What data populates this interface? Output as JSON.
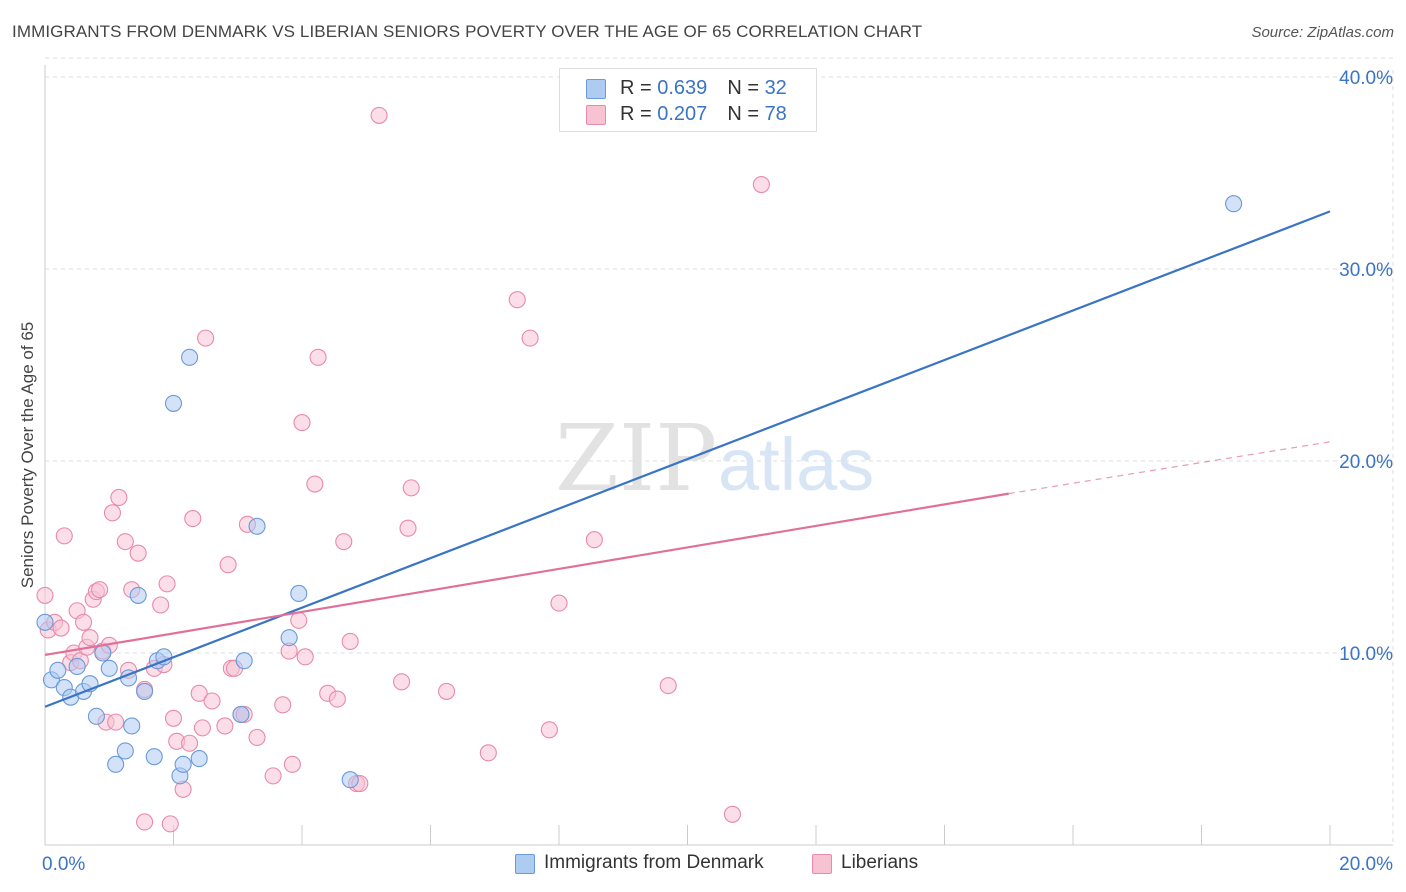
{
  "header": {
    "title": "IMMIGRANTS FROM DENMARK VS LIBERIAN SENIORS POVERTY OVER THE AGE OF 65 CORRELATION CHART",
    "source": "Source: ZipAtlas.com"
  },
  "watermark": {
    "zip": "ZIP",
    "atlas": "atlas"
  },
  "legend": {
    "series1": {
      "r_label": "R = ",
      "r_value": "0.639",
      "n_label": "N = ",
      "n_value": "32"
    },
    "series2": {
      "r_label": "R = ",
      "r_value": "0.207",
      "n_label": "N = ",
      "n_value": "78"
    }
  },
  "bottom_legend": {
    "series1": "Immigrants from Denmark",
    "series2": "Liberians"
  },
  "colors": {
    "blue_fill": "#aecbf2",
    "blue_stroke": "#6a9ad8",
    "blue_line": "#3a74c4",
    "pink_fill": "#f7c3d3",
    "pink_stroke": "#e88aaa",
    "pink_line": "#e0709a",
    "tick_label": "#3a74c4",
    "grid": "#dddddd"
  },
  "chart_data": {
    "type": "scatter",
    "title": "IMMIGRANTS FROM DENMARK VS LIBERIAN SENIORS POVERTY OVER THE AGE OF 65 CORRELATION CHART",
    "xlabel": "",
    "ylabel": "Seniors Poverty Over the Age of 65",
    "xlim": [
      0,
      20
    ],
    "ylim": [
      0,
      41
    ],
    "x_tick_labels": [
      "0.0%",
      "20.0%"
    ],
    "y_ticks": [
      10,
      20,
      30,
      40
    ],
    "y_tick_labels": [
      "10.0%",
      "20.0%",
      "30.0%",
      "40.0%"
    ],
    "grid": true,
    "legend_position": "top-center",
    "series": [
      {
        "name": "Immigrants from Denmark",
        "r": 0.639,
        "n": 32,
        "points": [
          [
            0.0,
            11.6
          ],
          [
            0.1,
            8.6
          ],
          [
            0.2,
            9.1
          ],
          [
            0.3,
            8.2
          ],
          [
            0.4,
            7.7
          ],
          [
            0.5,
            9.3
          ],
          [
            0.6,
            8.0
          ],
          [
            0.7,
            8.4
          ],
          [
            0.8,
            6.7
          ],
          [
            0.9,
            10.0
          ],
          [
            1.0,
            9.2
          ],
          [
            1.25,
            4.9
          ],
          [
            1.3,
            8.7
          ],
          [
            1.35,
            6.2
          ],
          [
            1.45,
            13.0
          ],
          [
            1.55,
            8.0
          ],
          [
            1.7,
            4.6
          ],
          [
            1.75,
            9.6
          ],
          [
            1.85,
            9.8
          ],
          [
            2.0,
            23.0
          ],
          [
            2.1,
            3.6
          ],
          [
            2.15,
            4.2
          ],
          [
            2.25,
            25.4
          ],
          [
            2.4,
            4.5
          ],
          [
            3.05,
            6.8
          ],
          [
            3.1,
            9.6
          ],
          [
            3.3,
            16.6
          ],
          [
            3.8,
            10.8
          ],
          [
            3.95,
            13.1
          ],
          [
            4.75,
            3.4
          ],
          [
            18.5,
            33.4
          ],
          [
            1.1,
            4.2
          ]
        ],
        "trend": {
          "x": [
            0,
            20
          ],
          "y": [
            7.2,
            33.0
          ],
          "style": "solid"
        }
      },
      {
        "name": "Liberians",
        "r": 0.207,
        "n": 78,
        "points": [
          [
            0.0,
            13.0
          ],
          [
            0.05,
            11.2
          ],
          [
            0.15,
            11.6
          ],
          [
            0.25,
            11.3
          ],
          [
            0.3,
            16.1
          ],
          [
            0.4,
            9.5
          ],
          [
            0.45,
            10.0
          ],
          [
            0.5,
            12.2
          ],
          [
            0.55,
            9.6
          ],
          [
            0.6,
            11.6
          ],
          [
            0.65,
            10.3
          ],
          [
            0.7,
            10.8
          ],
          [
            0.75,
            12.8
          ],
          [
            0.8,
            13.2
          ],
          [
            0.85,
            13.3
          ],
          [
            0.9,
            10.1
          ],
          [
            0.95,
            6.4
          ],
          [
            1.0,
            10.4
          ],
          [
            1.05,
            17.3
          ],
          [
            1.1,
            6.4
          ],
          [
            1.15,
            18.1
          ],
          [
            1.25,
            15.8
          ],
          [
            1.3,
            9.1
          ],
          [
            1.35,
            13.3
          ],
          [
            1.45,
            15.2
          ],
          [
            1.55,
            8.1
          ],
          [
            1.55,
            1.2
          ],
          [
            1.7,
            9.2
          ],
          [
            1.8,
            12.5
          ],
          [
            1.85,
            9.4
          ],
          [
            1.9,
            13.6
          ],
          [
            1.95,
            1.1
          ],
          [
            2.0,
            6.6
          ],
          [
            2.05,
            5.4
          ],
          [
            2.15,
            2.9
          ],
          [
            2.25,
            5.3
          ],
          [
            2.3,
            17.0
          ],
          [
            2.4,
            7.9
          ],
          [
            2.45,
            6.1
          ],
          [
            2.5,
            26.4
          ],
          [
            2.6,
            7.5
          ],
          [
            2.8,
            6.2
          ],
          [
            2.85,
            14.6
          ],
          [
            2.9,
            9.2
          ],
          [
            2.95,
            9.2
          ],
          [
            3.05,
            6.8
          ],
          [
            3.1,
            6.8
          ],
          [
            3.15,
            16.7
          ],
          [
            3.3,
            5.6
          ],
          [
            3.55,
            3.6
          ],
          [
            3.7,
            7.3
          ],
          [
            3.8,
            10.1
          ],
          [
            3.85,
            4.2
          ],
          [
            3.95,
            11.7
          ],
          [
            4.0,
            22.0
          ],
          [
            4.05,
            9.8
          ],
          [
            4.2,
            18.8
          ],
          [
            4.25,
            25.4
          ],
          [
            4.4,
            7.9
          ],
          [
            4.55,
            7.6
          ],
          [
            4.65,
            15.8
          ],
          [
            4.75,
            10.6
          ],
          [
            4.85,
            3.2
          ],
          [
            4.9,
            3.2
          ],
          [
            5.2,
            38.0
          ],
          [
            5.55,
            8.5
          ],
          [
            5.65,
            16.5
          ],
          [
            5.7,
            18.6
          ],
          [
            6.25,
            8.0
          ],
          [
            6.9,
            4.8
          ],
          [
            7.35,
            28.4
          ],
          [
            7.55,
            26.4
          ],
          [
            7.85,
            6.0
          ],
          [
            8.0,
            12.6
          ],
          [
            8.55,
            15.9
          ],
          [
            9.7,
            8.3
          ],
          [
            10.7,
            1.6
          ],
          [
            11.15,
            34.4
          ]
        ],
        "trend": {
          "x": [
            0,
            15
          ],
          "y": [
            9.9,
            18.3
          ],
          "style": "solid",
          "extension": {
            "x": [
              15,
              20
            ],
            "y": [
              18.3,
              21.0
            ],
            "style": "dashed"
          }
        }
      }
    ]
  }
}
